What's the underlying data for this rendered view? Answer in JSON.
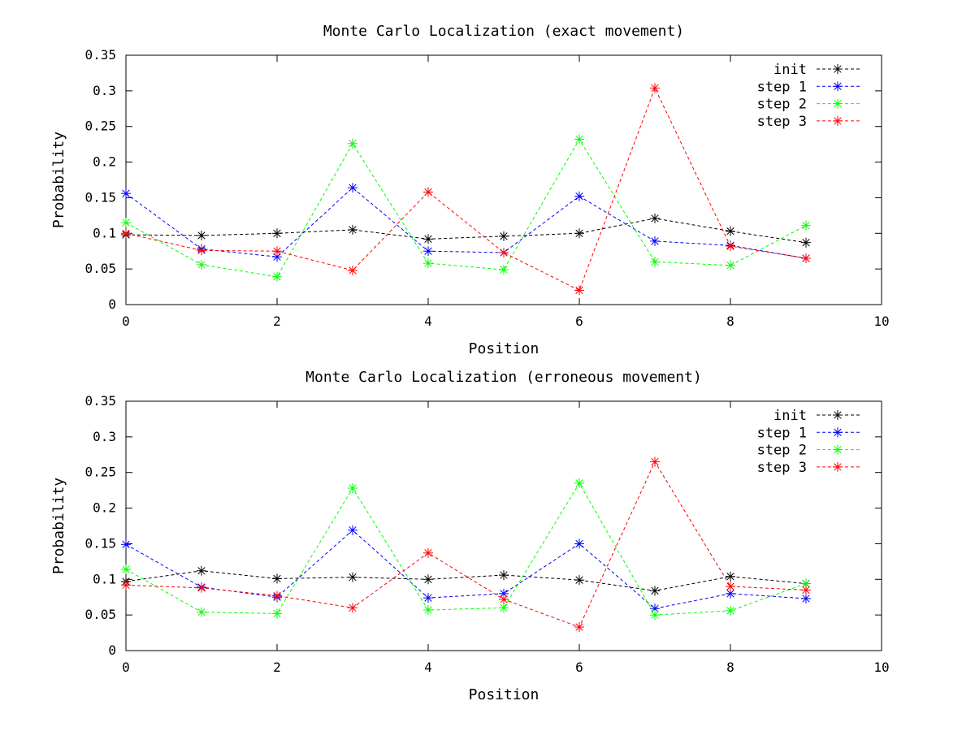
{
  "chart_data": [
    {
      "type": "line",
      "title": "Monte Carlo Localization (exact movement)",
      "xlabel": "Position",
      "ylabel": "Probability",
      "xlim": [
        0,
        10
      ],
      "ylim": [
        0,
        0.35
      ],
      "xticks": [
        0,
        2,
        4,
        6,
        8,
        10
      ],
      "yticks": [
        0,
        0.05,
        0.1,
        0.15,
        0.2,
        0.25,
        0.3,
        0.35
      ],
      "xtick_labels": [
        "0",
        "2",
        "4",
        "6",
        "8",
        "10"
      ],
      "ytick_labels": [
        "0",
        "0.05",
        "0.1",
        "0.15",
        "0.2",
        "0.25",
        "0.3",
        "0.35"
      ],
      "grid": false,
      "legend": "top-right",
      "x": [
        0,
        1,
        2,
        3,
        4,
        5,
        6,
        7,
        8,
        9
      ],
      "series": [
        {
          "name": "init",
          "color": "#000000",
          "values": [
            0.098,
            0.097,
            0.1,
            0.105,
            0.092,
            0.096,
            0.1,
            0.121,
            0.103,
            0.087
          ]
        },
        {
          "name": "step 1",
          "color": "#0000ff",
          "values": [
            0.156,
            0.078,
            0.067,
            0.164,
            0.075,
            0.073,
            0.152,
            0.089,
            0.083,
            0.065
          ]
        },
        {
          "name": "step 2",
          "color": "#00ff00",
          "values": [
            0.115,
            0.056,
            0.039,
            0.226,
            0.058,
            0.049,
            0.232,
            0.06,
            0.055,
            0.111
          ]
        },
        {
          "name": "step 3",
          "color": "#ff0000",
          "values": [
            0.1,
            0.076,
            0.075,
            0.048,
            0.158,
            0.073,
            0.02,
            0.304,
            0.082,
            0.065
          ]
        }
      ]
    },
    {
      "type": "line",
      "title": "Monte Carlo Localization (erroneous movement)",
      "xlabel": "Position",
      "ylabel": "Probability",
      "xlim": [
        0,
        10
      ],
      "ylim": [
        0,
        0.35
      ],
      "xticks": [
        0,
        2,
        4,
        6,
        8,
        10
      ],
      "yticks": [
        0,
        0.05,
        0.1,
        0.15,
        0.2,
        0.25,
        0.3,
        0.35
      ],
      "xtick_labels": [
        "0",
        "2",
        "4",
        "6",
        "8",
        "10"
      ],
      "ytick_labels": [
        "0",
        "0.05",
        "0.1",
        "0.15",
        "0.2",
        "0.25",
        "0.3",
        "0.35"
      ],
      "grid": false,
      "legend": "top-right",
      "x": [
        0,
        1,
        2,
        3,
        4,
        5,
        6,
        7,
        8,
        9
      ],
      "series": [
        {
          "name": "init",
          "color": "#000000",
          "values": [
            0.097,
            0.112,
            0.101,
            0.103,
            0.1,
            0.106,
            0.099,
            0.084,
            0.104,
            0.094
          ]
        },
        {
          "name": "step 1",
          "color": "#0000ff",
          "values": [
            0.149,
            0.089,
            0.075,
            0.169,
            0.074,
            0.08,
            0.15,
            0.059,
            0.08,
            0.073
          ]
        },
        {
          "name": "step 2",
          "color": "#00ff00",
          "values": [
            0.114,
            0.054,
            0.052,
            0.228,
            0.057,
            0.06,
            0.235,
            0.05,
            0.056,
            0.094
          ]
        },
        {
          "name": "step 3",
          "color": "#ff0000",
          "values": [
            0.092,
            0.088,
            0.077,
            0.06,
            0.137,
            0.072,
            0.033,
            0.265,
            0.09,
            0.085
          ]
        }
      ]
    }
  ]
}
